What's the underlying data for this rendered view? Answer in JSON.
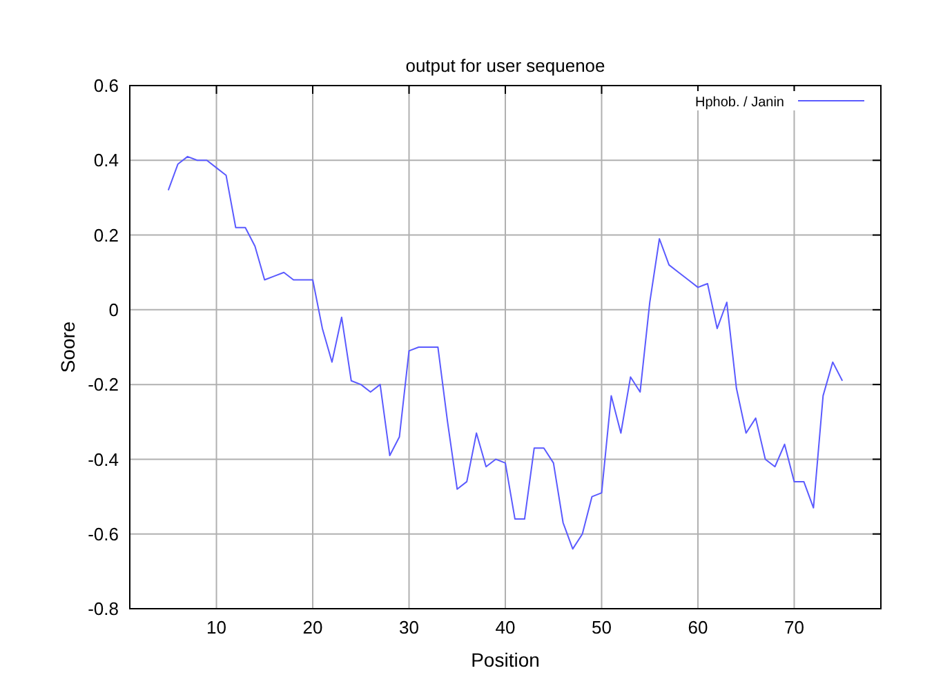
{
  "chart_data": {
    "type": "line",
    "title": "output for user sequenoe",
    "xlabel": "Position",
    "ylabel": "Soore",
    "x": [
      5,
      6,
      7,
      8,
      9,
      10,
      11,
      12,
      13,
      14,
      15,
      16,
      17,
      18,
      19,
      20,
      21,
      22,
      23,
      24,
      25,
      26,
      27,
      28,
      29,
      30,
      31,
      32,
      33,
      34,
      35,
      36,
      37,
      38,
      39,
      40,
      41,
      42,
      43,
      44,
      45,
      46,
      47,
      48,
      49,
      50,
      51,
      52,
      53,
      54,
      55,
      56,
      57,
      58,
      59,
      60,
      61,
      62,
      63,
      64,
      65,
      66,
      67,
      68,
      69,
      70,
      71,
      72,
      73,
      74,
      75
    ],
    "series": [
      {
        "name": "Hphob. / Janin",
        "color": "#5a5aff",
        "values": [
          0.32,
          0.39,
          0.41,
          0.4,
          0.4,
          0.38,
          0.36,
          0.22,
          0.22,
          0.17,
          0.08,
          0.09,
          0.1,
          0.08,
          0.08,
          0.08,
          -0.05,
          -0.14,
          -0.02,
          -0.19,
          -0.2,
          -0.22,
          -0.2,
          -0.39,
          -0.34,
          -0.11,
          -0.1,
          -0.1,
          -0.1,
          -0.3,
          -0.48,
          -0.46,
          -0.33,
          -0.42,
          -0.4,
          -0.41,
          -0.56,
          -0.56,
          -0.37,
          -0.37,
          -0.41,
          -0.57,
          -0.64,
          -0.6,
          -0.5,
          -0.49,
          -0.23,
          -0.33,
          -0.18,
          -0.22,
          0.02,
          0.19,
          0.12,
          0.1,
          0.08,
          0.06,
          0.07,
          -0.05,
          0.02,
          -0.21,
          -0.33,
          -0.29,
          -0.4,
          -0.42,
          -0.36,
          -0.46,
          -0.46,
          -0.53,
          -0.23,
          -0.14,
          -0.19
        ]
      }
    ],
    "xlim": [
      1,
      79
    ],
    "xticks": [
      10,
      20,
      30,
      40,
      50,
      60,
      70
    ],
    "ylim": [
      -0.8,
      0.6
    ],
    "yticks": [
      -0.8,
      -0.6,
      -0.4,
      -0.2,
      0,
      0.2,
      0.4,
      0.6
    ],
    "grid": true,
    "legend": "top right",
    "line_style": "solid"
  }
}
